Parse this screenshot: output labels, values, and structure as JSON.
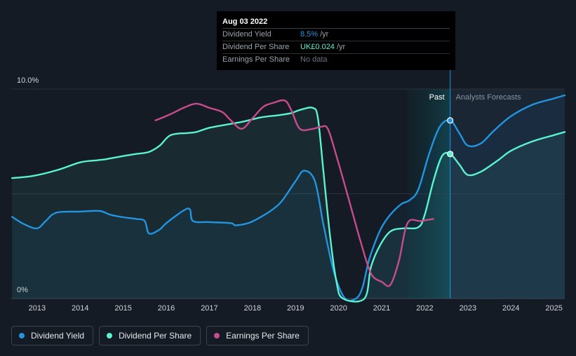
{
  "tooltip": {
    "date": "Aug 03 2022",
    "rows": [
      {
        "label": "Dividend Yield",
        "value": "8.5%",
        "unit": "/yr",
        "color": "#2394df"
      },
      {
        "label": "Dividend Per Share",
        "value": "UK£0.024",
        "unit": "/yr",
        "color": "#5bf2d1"
      },
      {
        "label": "Earnings Per Share",
        "value": "No data",
        "unit": "",
        "color": "#6b7480"
      }
    ]
  },
  "legend": [
    {
      "label": "Dividend Yield",
      "color": "#2394df"
    },
    {
      "label": "Dividend Per Share",
      "color": "#5bf2d1"
    },
    {
      "label": "Earnings Per Share",
      "color": "#c64c8d"
    }
  ],
  "chart_data": {
    "type": "line",
    "x_tick_labels": [
      "2013",
      "2014",
      "2015",
      "2016",
      "2017",
      "2018",
      "2019",
      "2020",
      "2021",
      "2022",
      "2023",
      "2024",
      "2025"
    ],
    "y_tick_labels": [
      "10.0%",
      "0%"
    ],
    "y_range": [
      0,
      10
    ],
    "x_range": [
      2012.4,
      2025.25
    ],
    "regions": {
      "past_label": "Past",
      "forecast_label": "Analysts Forecasts",
      "past_start": 2021.6,
      "forecast_start": 2022.59
    },
    "markers": [
      {
        "series": "Dividend Yield",
        "x": 2022.59,
        "y": 8.5
      },
      {
        "series": "Dividend Per Share",
        "x": 2022.59,
        "y": 6.9
      }
    ],
    "series": [
      {
        "name": "Dividend Yield",
        "color": "#2394df",
        "fill": true,
        "points": [
          [
            2012.42,
            3.9
          ],
          [
            2012.7,
            3.55
          ],
          [
            2013.0,
            3.35
          ],
          [
            2013.2,
            3.7
          ],
          [
            2013.45,
            4.1
          ],
          [
            2014.0,
            4.15
          ],
          [
            2014.45,
            4.18
          ],
          [
            2014.7,
            4.0
          ],
          [
            2015.0,
            3.88
          ],
          [
            2015.3,
            3.8
          ],
          [
            2015.5,
            3.7
          ],
          [
            2015.6,
            3.1
          ],
          [
            2015.85,
            3.3
          ],
          [
            2016.0,
            3.6
          ],
          [
            2016.4,
            4.2
          ],
          [
            2016.55,
            4.25
          ],
          [
            2016.62,
            3.7
          ],
          [
            2017.0,
            3.65
          ],
          [
            2017.5,
            3.6
          ],
          [
            2017.6,
            3.5
          ],
          [
            2017.9,
            3.6
          ],
          [
            2018.2,
            3.9
          ],
          [
            2018.5,
            4.3
          ],
          [
            2018.7,
            4.7
          ],
          [
            2019.0,
            5.6
          ],
          [
            2019.2,
            6.1
          ],
          [
            2019.45,
            5.6
          ],
          [
            2019.65,
            3.5
          ],
          [
            2019.9,
            1.2
          ],
          [
            2020.15,
            0.0
          ],
          [
            2020.4,
            0.0
          ],
          [
            2020.55,
            0.5
          ],
          [
            2020.7,
            1.8
          ],
          [
            2020.85,
            2.7
          ],
          [
            2021.0,
            3.4
          ],
          [
            2021.2,
            4.0
          ],
          [
            2021.45,
            4.5
          ],
          [
            2021.65,
            4.7
          ],
          [
            2021.85,
            5.2
          ],
          [
            2022.1,
            6.9
          ],
          [
            2022.35,
            8.2
          ],
          [
            2022.59,
            8.5
          ],
          [
            2022.8,
            7.9
          ],
          [
            2023.0,
            7.3
          ],
          [
            2023.3,
            7.4
          ],
          [
            2023.6,
            8.0
          ],
          [
            2024.0,
            8.7
          ],
          [
            2024.5,
            9.25
          ],
          [
            2025.0,
            9.55
          ],
          [
            2025.25,
            9.7
          ]
        ]
      },
      {
        "name": "Dividend Per Share",
        "color": "#5bf2d1",
        "fill": true,
        "points": [
          [
            2012.42,
            5.75
          ],
          [
            2012.9,
            5.85
          ],
          [
            2013.5,
            6.15
          ],
          [
            2014.0,
            6.5
          ],
          [
            2014.4,
            6.6
          ],
          [
            2014.6,
            6.65
          ],
          [
            2015.0,
            6.8
          ],
          [
            2015.3,
            6.9
          ],
          [
            2015.6,
            7.0
          ],
          [
            2015.85,
            7.3
          ],
          [
            2016.1,
            7.8
          ],
          [
            2016.5,
            7.9
          ],
          [
            2016.7,
            7.95
          ],
          [
            2017.0,
            8.15
          ],
          [
            2017.4,
            8.3
          ],
          [
            2017.8,
            8.45
          ],
          [
            2018.2,
            8.65
          ],
          [
            2018.6,
            8.75
          ],
          [
            2018.9,
            8.85
          ],
          [
            2019.1,
            9.0
          ],
          [
            2019.4,
            9.1
          ],
          [
            2019.52,
            8.6
          ],
          [
            2019.65,
            6.0
          ],
          [
            2019.8,
            3.0
          ],
          [
            2019.95,
            0.8
          ],
          [
            2020.1,
            0.0
          ],
          [
            2020.6,
            0.0
          ],
          [
            2020.75,
            1.5
          ],
          [
            2020.95,
            2.5
          ],
          [
            2021.2,
            3.2
          ],
          [
            2021.5,
            3.35
          ],
          [
            2021.85,
            3.4
          ],
          [
            2022.0,
            4.0
          ],
          [
            2022.2,
            5.6
          ],
          [
            2022.4,
            6.8
          ],
          [
            2022.59,
            6.9
          ],
          [
            2022.8,
            6.4
          ],
          [
            2023.0,
            5.9
          ],
          [
            2023.3,
            6.05
          ],
          [
            2023.7,
            6.6
          ],
          [
            2024.0,
            7.05
          ],
          [
            2024.5,
            7.5
          ],
          [
            2025.0,
            7.8
          ],
          [
            2025.25,
            7.95
          ]
        ]
      },
      {
        "name": "Earnings Per Share",
        "color": "#c64c8d",
        "fill": false,
        "points": [
          [
            2015.75,
            8.5
          ],
          [
            2016.1,
            8.8
          ],
          [
            2016.4,
            9.1
          ],
          [
            2016.7,
            9.3
          ],
          [
            2017.0,
            9.1
          ],
          [
            2017.3,
            8.9
          ],
          [
            2017.5,
            8.5
          ],
          [
            2017.75,
            8.1
          ],
          [
            2018.0,
            8.6
          ],
          [
            2018.25,
            9.15
          ],
          [
            2018.5,
            9.35
          ],
          [
            2018.75,
            9.45
          ],
          [
            2018.9,
            9.0
          ],
          [
            2019.1,
            8.1
          ],
          [
            2019.4,
            8.1
          ],
          [
            2019.6,
            8.2
          ],
          [
            2019.75,
            8.1
          ],
          [
            2019.95,
            6.8
          ],
          [
            2020.2,
            5.0
          ],
          [
            2020.5,
            2.8
          ],
          [
            2020.75,
            1.2
          ],
          [
            2021.0,
            0.8
          ],
          [
            2021.2,
            0.65
          ],
          [
            2021.4,
            1.8
          ],
          [
            2021.6,
            3.6
          ],
          [
            2021.9,
            3.7
          ],
          [
            2022.2,
            3.8
          ]
        ]
      }
    ]
  }
}
